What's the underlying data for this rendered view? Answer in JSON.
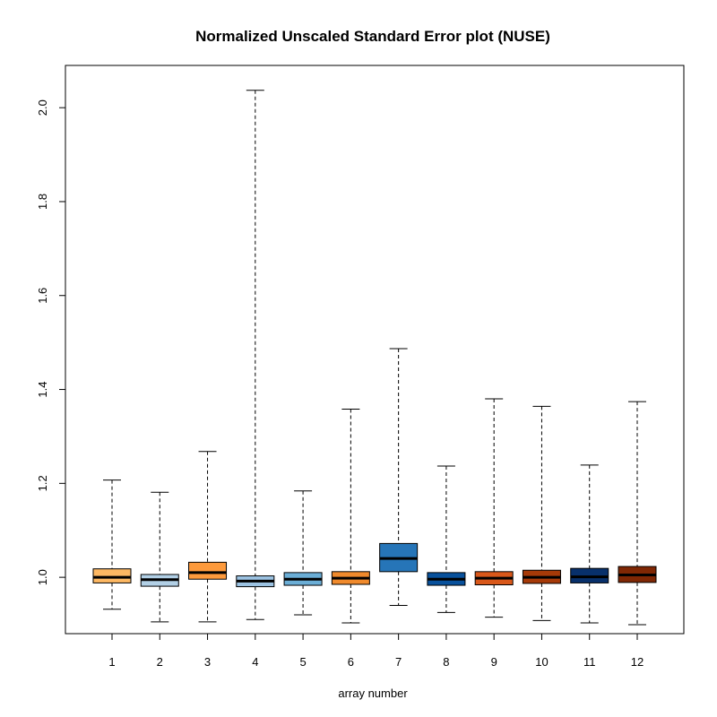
{
  "chart_data": {
    "type": "box",
    "title": "Normalized Unscaled Standard Error plot (NUSE)",
    "xlabel": "array number",
    "ylabel": "",
    "ylim": [
      0.88,
      2.09
    ],
    "y_ticks": [
      "1.0",
      "1.2",
      "1.4",
      "1.6",
      "1.8",
      "2.0"
    ],
    "categories": [
      "1",
      "2",
      "3",
      "4",
      "5",
      "6",
      "7",
      "8",
      "9",
      "10",
      "11",
      "12"
    ],
    "boxes": [
      {
        "label": "1",
        "min": 0.932,
        "q1": 0.988,
        "median": 1.0,
        "q3": 1.018,
        "max": 1.207,
        "color": "#FDB863"
      },
      {
        "label": "2",
        "min": 0.905,
        "q1": 0.981,
        "median": 0.995,
        "q3": 1.006,
        "max": 1.181,
        "color": "#B2D0E6"
      },
      {
        "label": "3",
        "min": 0.905,
        "q1": 0.996,
        "median": 1.01,
        "q3": 1.032,
        "max": 1.268,
        "color": "#FD9A3C"
      },
      {
        "label": "4",
        "min": 0.91,
        "q1": 0.98,
        "median": 0.992,
        "q3": 1.003,
        "max": 2.037,
        "color": "#9CC3E3"
      },
      {
        "label": "5",
        "min": 0.92,
        "q1": 0.983,
        "median": 0.996,
        "q3": 1.01,
        "max": 1.184,
        "color": "#6BAED6"
      },
      {
        "label": "6",
        "min": 0.903,
        "q1": 0.985,
        "median": 0.998,
        "q3": 1.012,
        "max": 1.358,
        "color": "#F08A2C"
      },
      {
        "label": "7",
        "min": 0.94,
        "q1": 1.012,
        "median": 1.04,
        "q3": 1.072,
        "max": 1.487,
        "color": "#2675B8"
      },
      {
        "label": "8",
        "min": 0.925,
        "q1": 0.983,
        "median": 0.996,
        "q3": 1.01,
        "max": 1.237,
        "color": "#08519C"
      },
      {
        "label": "9",
        "min": 0.915,
        "q1": 0.984,
        "median": 0.998,
        "q3": 1.012,
        "max": 1.38,
        "color": "#D9581A"
      },
      {
        "label": "10",
        "min": 0.908,
        "q1": 0.987,
        "median": 1.0,
        "q3": 1.015,
        "max": 1.364,
        "color": "#A63A08"
      },
      {
        "label": "11",
        "min": 0.903,
        "q1": 0.988,
        "median": 1.001,
        "q3": 1.019,
        "max": 1.239,
        "color": "#08306B"
      },
      {
        "label": "12",
        "min": 0.899,
        "q1": 0.989,
        "median": 1.005,
        "q3": 1.023,
        "max": 1.374,
        "color": "#7F2704"
      }
    ]
  }
}
